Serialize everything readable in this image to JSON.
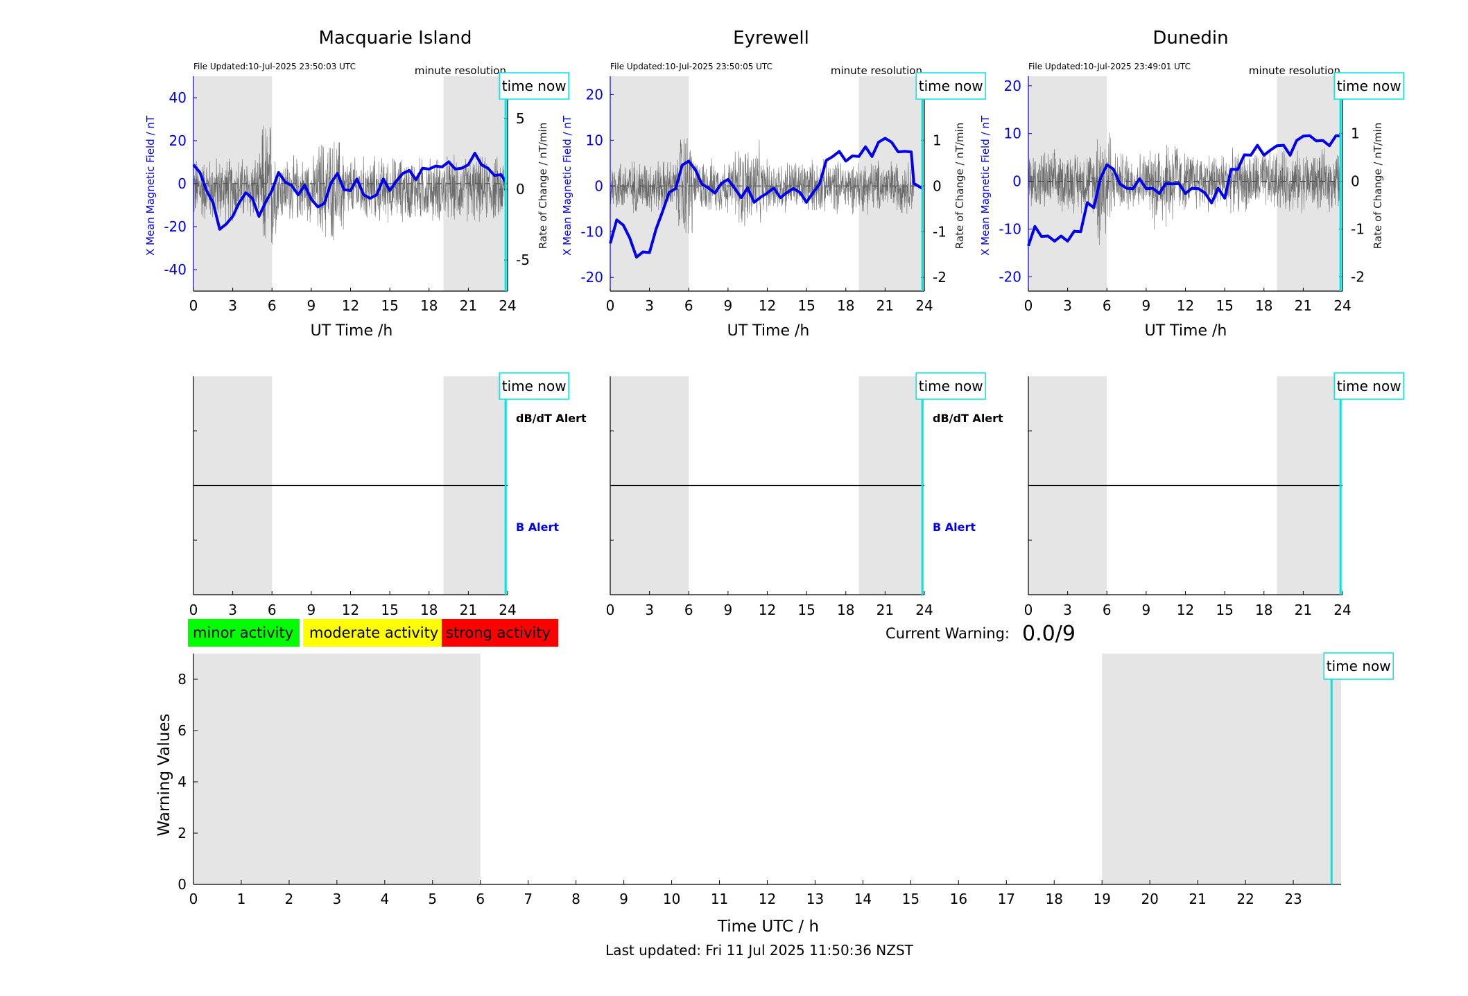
{
  "page_title": "",
  "footer": {
    "last_updated": "Last updated: Fri 11 Jul 2025 11:50:36 NZST"
  },
  "labels": {
    "time_now": "time now",
    "minute_resolution": "minute resolution",
    "x_axis_title": "UT Time /h",
    "dbdt_alert": "dB/dT Alert",
    "b_alert": "B Alert",
    "left_axis_title": "X Mean Magnetic Field / nT",
    "right_axis_title": "Rate of Change / nT/min"
  },
  "legend": [
    {
      "label": "minor activity",
      "color": "#00ff00"
    },
    {
      "label": "moderate activity",
      "color": "#ffff00"
    },
    {
      "label": "strong activity",
      "color": "#ff0000"
    }
  ],
  "warning": {
    "label": "Current Warning:",
    "value": "0.0/9"
  },
  "colors": {
    "field_line": "#0000ee",
    "rate_line": "#555555",
    "night_shade": "#e5e5e5",
    "time_now": "#00e5e5",
    "alert_text_blue": "#0000ee"
  },
  "chart_data": [
    {
      "type": "line",
      "title": "Macquarie Island",
      "file_updated": "File Updated:10-Jul-2025 23:50:03 UTC",
      "xlabel": "UT Time /h",
      "ylabel": "X Mean Magnetic Field / nT",
      "ylabel_right": "Rate of Change / nT/min",
      "xlim": [
        0,
        24
      ],
      "ylim": [
        -50,
        50
      ],
      "ylim_right": [
        -7.2,
        8
      ],
      "xticks": [
        0,
        3,
        6,
        9,
        12,
        15,
        18,
        21,
        24
      ],
      "yticks": [
        -40,
        -20,
        0,
        20,
        40
      ],
      "yticks_right": [
        -5,
        0,
        5
      ],
      "night_shading_hours": [
        [
          0,
          6
        ],
        [
          19.1,
          24
        ]
      ],
      "time_now_hour": 23.85,
      "rate_amplitude": 2.2,
      "series": [
        {
          "name": "X Mean Magnetic Field",
          "x": [
            0,
            0.5,
            1,
            1.5,
            2,
            2.5,
            3,
            3.5,
            4,
            4.5,
            5,
            5.5,
            6,
            6.5,
            7,
            7.5,
            8,
            8.5,
            9,
            9.5,
            10,
            10.5,
            11,
            11.5,
            12,
            12.5,
            13,
            13.5,
            14,
            14.5,
            15,
            15.5,
            16,
            16.5,
            17,
            17.5,
            18,
            18.5,
            19,
            19.5,
            20,
            20.5,
            21,
            21.5,
            22,
            22.5,
            23,
            23.5,
            23.85
          ],
          "values": [
            10,
            4,
            -2,
            -10,
            -20,
            -20,
            -14,
            -10,
            -3,
            -8,
            -14,
            -10,
            -2,
            4,
            2,
            -2,
            -4,
            -2,
            -6,
            -12,
            -8,
            -1,
            6,
            -4,
            -2,
            1,
            -4,
            -8,
            -4,
            1,
            -2,
            0,
            6,
            5,
            3,
            6,
            8,
            7,
            9,
            9,
            8,
            6,
            10,
            13,
            10,
            6,
            5,
            3,
            2
          ]
        }
      ]
    },
    {
      "type": "line",
      "title": "Eyrewell",
      "file_updated": "File Updated:10-Jul-2025 23:50:05 UTC",
      "xlabel": "UT Time /h",
      "ylabel": "X Mean Magnetic Field / nT",
      "ylabel_right": "Rate of Change / nT/min",
      "xlim": [
        0,
        24
      ],
      "ylim": [
        -23,
        24
      ],
      "ylim_right": [
        -2.3,
        2.4
      ],
      "xticks": [
        0,
        3,
        6,
        9,
        12,
        15,
        18,
        21,
        24
      ],
      "yticks": [
        -20,
        -10,
        0,
        10,
        20
      ],
      "yticks_right": [
        -2,
        -1,
        0,
        1,
        2
      ],
      "night_shading_hours": [
        [
          0,
          6
        ],
        [
          19,
          24
        ]
      ],
      "time_now_hour": 23.85,
      "rate_amplitude": 0.55,
      "series": [
        {
          "name": "X Mean Magnetic Field",
          "x": [
            0,
            0.5,
            1,
            1.5,
            2,
            2.5,
            3,
            3.5,
            4,
            4.5,
            5,
            5.5,
            6,
            6.5,
            7,
            7.5,
            8,
            8.5,
            9,
            9.5,
            10,
            10.5,
            11,
            11.5,
            12,
            12.5,
            13,
            13.5,
            14,
            14.5,
            15,
            15.5,
            16,
            16.5,
            17,
            17.5,
            18,
            18.5,
            19,
            19.5,
            20,
            20.5,
            21,
            21.5,
            22,
            22.5,
            23,
            23.2,
            23.85
          ],
          "values": [
            -12,
            -8,
            -8,
            -12,
            -15,
            -15,
            -14,
            -10,
            -5,
            -2,
            0,
            4,
            6,
            3,
            1,
            -1,
            -1,
            0,
            2,
            -1,
            -2,
            -1,
            -3,
            -3,
            -1,
            -1,
            -2,
            -2,
            0,
            -2,
            -3,
            -2,
            1,
            5,
            7,
            7,
            6,
            6,
            7,
            8,
            7,
            9,
            11,
            9,
            8,
            7,
            8,
            0,
            0
          ]
        }
      ]
    },
    {
      "type": "line",
      "title": "Dunedin",
      "file_updated": "File Updated:10-Jul-2025 23:49:01 UTC",
      "xlabel": "UT Time /h",
      "ylabel": "X Mean Magnetic Field / nT",
      "ylabel_right": "Rate of Change / nT/min",
      "xlim": [
        0,
        24
      ],
      "ylim": [
        -23,
        22
      ],
      "ylim_right": [
        -2.3,
        2.2
      ],
      "xticks": [
        0,
        3,
        6,
        9,
        12,
        15,
        18,
        21,
        24
      ],
      "yticks": [
        -20,
        -10,
        0,
        10,
        20
      ],
      "yticks_right": [
        -2,
        -1,
        0,
        1,
        2
      ],
      "night_shading_hours": [
        [
          0,
          6
        ],
        [
          19,
          24
        ]
      ],
      "time_now_hour": 23.85,
      "rate_amplitude": 0.6,
      "series": [
        {
          "name": "X Mean Magnetic Field",
          "x": [
            0,
            0.5,
            1,
            1.5,
            2,
            2.5,
            3,
            3.5,
            4,
            4.5,
            5,
            5.5,
            6,
            6.5,
            7,
            7.5,
            8,
            8.5,
            9,
            9.5,
            10,
            10.5,
            11,
            11.5,
            12,
            12.5,
            13,
            13.5,
            14,
            14.5,
            15,
            15.5,
            16,
            16.5,
            17,
            17.5,
            18,
            18.5,
            19,
            19.5,
            20,
            20.5,
            21,
            21.5,
            22,
            22.5,
            23,
            23.5,
            23.85
          ],
          "values": [
            -13,
            -10,
            -11,
            -12,
            -12,
            -12,
            -12,
            -11,
            -10,
            -5,
            -5,
            0,
            4,
            2,
            0,
            -2,
            -1,
            0,
            -1,
            -2,
            -2,
            -1,
            0,
            -1,
            -2,
            -2,
            -1,
            -3,
            -4,
            -2,
            -3,
            2,
            3,
            5,
            6,
            7,
            6,
            6,
            8,
            7,
            6,
            8,
            10,
            9,
            9,
            8,
            8,
            9,
            10
          ]
        }
      ]
    },
    {
      "type": "line",
      "title": "",
      "ylabel": "",
      "xlim": [
        0,
        24
      ],
      "ylim": [
        0,
        1
      ],
      "xticks": [
        0,
        3,
        6,
        9,
        12,
        15,
        18,
        21,
        24
      ],
      "alert_labels": [
        "dB/dT Alert",
        "B Alert"
      ],
      "night_shading_hours": [
        [
          0,
          6
        ],
        [
          19.1,
          24
        ]
      ],
      "time_now_hour": 23.85,
      "series": [
        {
          "x": [
            0,
            24
          ],
          "values": [
            0.5,
            0.5
          ]
        }
      ]
    },
    {
      "type": "line",
      "title": "",
      "ylabel": "",
      "xlim": [
        0,
        24
      ],
      "ylim": [
        0,
        1
      ],
      "xticks": [
        0,
        3,
        6,
        9,
        12,
        15,
        18,
        21,
        24
      ],
      "alert_labels": [
        "dB/dT Alert",
        "B Alert"
      ],
      "night_shading_hours": [
        [
          0,
          6
        ],
        [
          19,
          24
        ]
      ],
      "time_now_hour": 23.85,
      "series": [
        {
          "x": [
            0,
            24
          ],
          "values": [
            0.5,
            0.5
          ]
        }
      ]
    },
    {
      "type": "line",
      "title": "",
      "ylabel": "",
      "xlim": [
        0,
        24
      ],
      "ylim": [
        0,
        1
      ],
      "xticks": [
        0,
        3,
        6,
        9,
        12,
        15,
        18,
        21,
        24
      ],
      "alert_labels": [],
      "night_shading_hours": [
        [
          0,
          6
        ],
        [
          19,
          24
        ]
      ],
      "time_now_hour": 23.85,
      "series": [
        {
          "x": [
            0,
            24
          ],
          "values": [
            0.5,
            0.5
          ]
        }
      ]
    },
    {
      "type": "bar",
      "title": "",
      "xlabel": "Time UTC / h",
      "ylabel": "Warning Values",
      "xlim": [
        0,
        24
      ],
      "ylim": [
        0,
        9
      ],
      "xticks": [
        0,
        1,
        2,
        3,
        4,
        5,
        6,
        7,
        8,
        9,
        10,
        11,
        12,
        13,
        14,
        15,
        16,
        17,
        18,
        19,
        20,
        21,
        22,
        23
      ],
      "yticks": [
        0,
        2,
        4,
        6,
        8
      ],
      "night_shading_hours": [
        [
          0,
          6
        ],
        [
          19,
          24
        ]
      ],
      "time_now_hour": 23.8,
      "categories": [],
      "values": []
    }
  ]
}
